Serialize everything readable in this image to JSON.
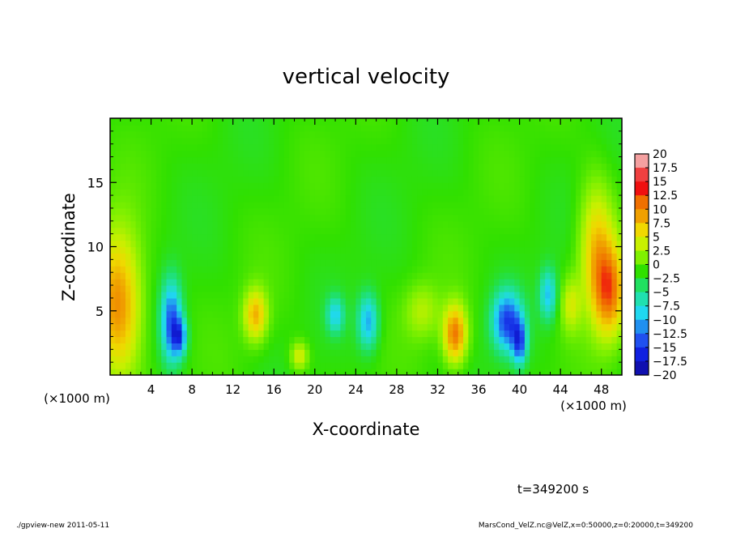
{
  "chart_data": {
    "type": "heatmap",
    "title": "vertical velocity",
    "xlabel": "X-coordinate",
    "ylabel": "Z-coordinate",
    "x_unit_label": "(×1000 m)",
    "y_unit_label": "(×1000 m)",
    "xlim": [
      0,
      50
    ],
    "ylim": [
      0,
      20
    ],
    "x_ticks": [
      4,
      8,
      12,
      16,
      20,
      24,
      28,
      32,
      36,
      40,
      44,
      48
    ],
    "y_ticks": [
      5,
      10,
      15
    ],
    "colorbar": {
      "labels": [
        "20",
        "17.5",
        "15",
        "12.5",
        "10",
        "7.5",
        "5",
        "2.5",
        "0",
        "−2.5",
        "−5",
        "−7.5",
        "−10",
        "−12.5",
        "−15",
        "−17.5",
        "−20"
      ],
      "values": [
        20,
        17.5,
        15,
        12.5,
        10,
        7.5,
        5,
        2.5,
        0,
        -2.5,
        -5,
        -7.5,
        -10,
        -12.5,
        -15,
        -17.5,
        -20
      ],
      "colors": [
        "#f4a0a0",
        "#f04040",
        "#f01010",
        "#f07000",
        "#f0a000",
        "#f0d800",
        "#c8f000",
        "#80f000",
        "#30e000",
        "#20e060",
        "#20e0b0",
        "#20d8f0",
        "#2090f0",
        "#2050f0",
        "#1020e0",
        "#1010b0",
        "#7020c0"
      ]
    },
    "features": [
      {
        "x": 0.8,
        "z": 5.5,
        "sx": 1.6,
        "sz": 4.0,
        "value": 11
      },
      {
        "x": 6.0,
        "z": 4.2,
        "sx": 0.7,
        "sz": 2.2,
        "value": -12
      },
      {
        "x": 6.8,
        "z": 3.0,
        "sx": 0.5,
        "sz": 1.0,
        "value": -10
      },
      {
        "x": 14.2,
        "z": 4.7,
        "sx": 0.8,
        "sz": 1.4,
        "value": 9
      },
      {
        "x": 18.5,
        "z": 1.5,
        "sx": 0.6,
        "sz": 0.8,
        "value": 6
      },
      {
        "x": 22.0,
        "z": 4.7,
        "sx": 0.6,
        "sz": 1.0,
        "value": -7
      },
      {
        "x": 25.2,
        "z": 4.2,
        "sx": 0.7,
        "sz": 1.5,
        "value": -9
      },
      {
        "x": 30.5,
        "z": 5.0,
        "sx": 1.2,
        "sz": 1.5,
        "value": 4
      },
      {
        "x": 33.7,
        "z": 3.2,
        "sx": 0.8,
        "sz": 1.6,
        "value": 12
      },
      {
        "x": 38.8,
        "z": 4.2,
        "sx": 1.0,
        "sz": 1.6,
        "value": -13
      },
      {
        "x": 40.0,
        "z": 2.5,
        "sx": 0.5,
        "sz": 1.2,
        "value": -11
      },
      {
        "x": 42.8,
        "z": 6.3,
        "sx": 0.6,
        "sz": 1.4,
        "value": -8
      },
      {
        "x": 45.0,
        "z": 5.5,
        "sx": 0.7,
        "sz": 1.5,
        "value": 5
      },
      {
        "x": 47.5,
        "z": 10.0,
        "sx": 1.2,
        "sz": 3.5,
        "value": 8
      },
      {
        "x": 48.8,
        "z": 6.5,
        "sx": 1.1,
        "sz": 2.5,
        "value": 11
      }
    ]
  },
  "annotations": {
    "time_label": "t=349200 s",
    "footer_left": "./gpview-new   2011-05-11",
    "footer_right": "MarsCond_VelZ.nc@VelZ,x=0:50000,z=0:20000,t=349200"
  }
}
